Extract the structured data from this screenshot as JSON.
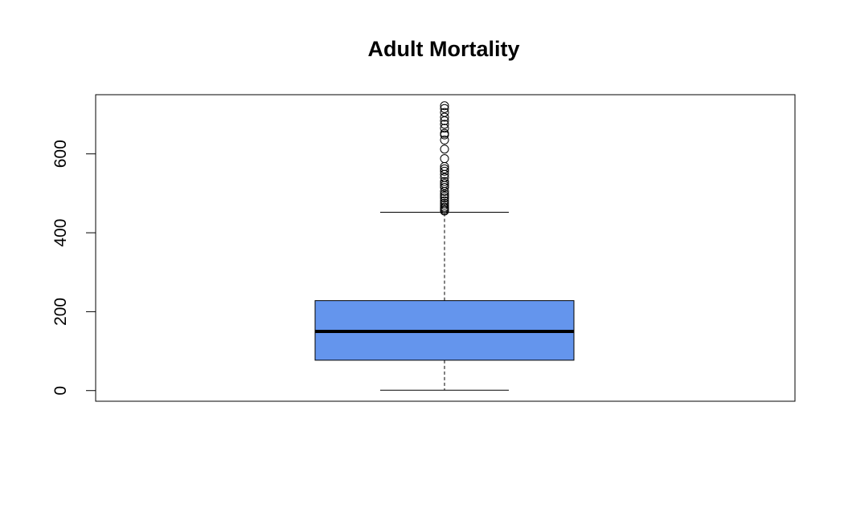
{
  "chart_data": {
    "type": "boxplot",
    "title": "Adult Mortality",
    "xlabel": "",
    "ylabel": "",
    "ylim": [
      -27,
      750
    ],
    "yticks": [
      0,
      200,
      400,
      600
    ],
    "grid": false,
    "box": {
      "lower_whisker": 1,
      "q1": 77,
      "median": 150,
      "q3": 228,
      "upper_whisker": 452,
      "fill_color": "#6495ED"
    },
    "outliers": [
      455,
      458,
      462,
      465,
      470,
      475,
      481,
      488,
      493,
      498,
      505,
      515,
      520,
      525,
      530,
      540,
      548,
      556,
      562,
      568,
      588,
      612,
      635,
      648,
      652,
      665,
      675,
      684,
      693,
      705,
      715,
      722
    ]
  }
}
